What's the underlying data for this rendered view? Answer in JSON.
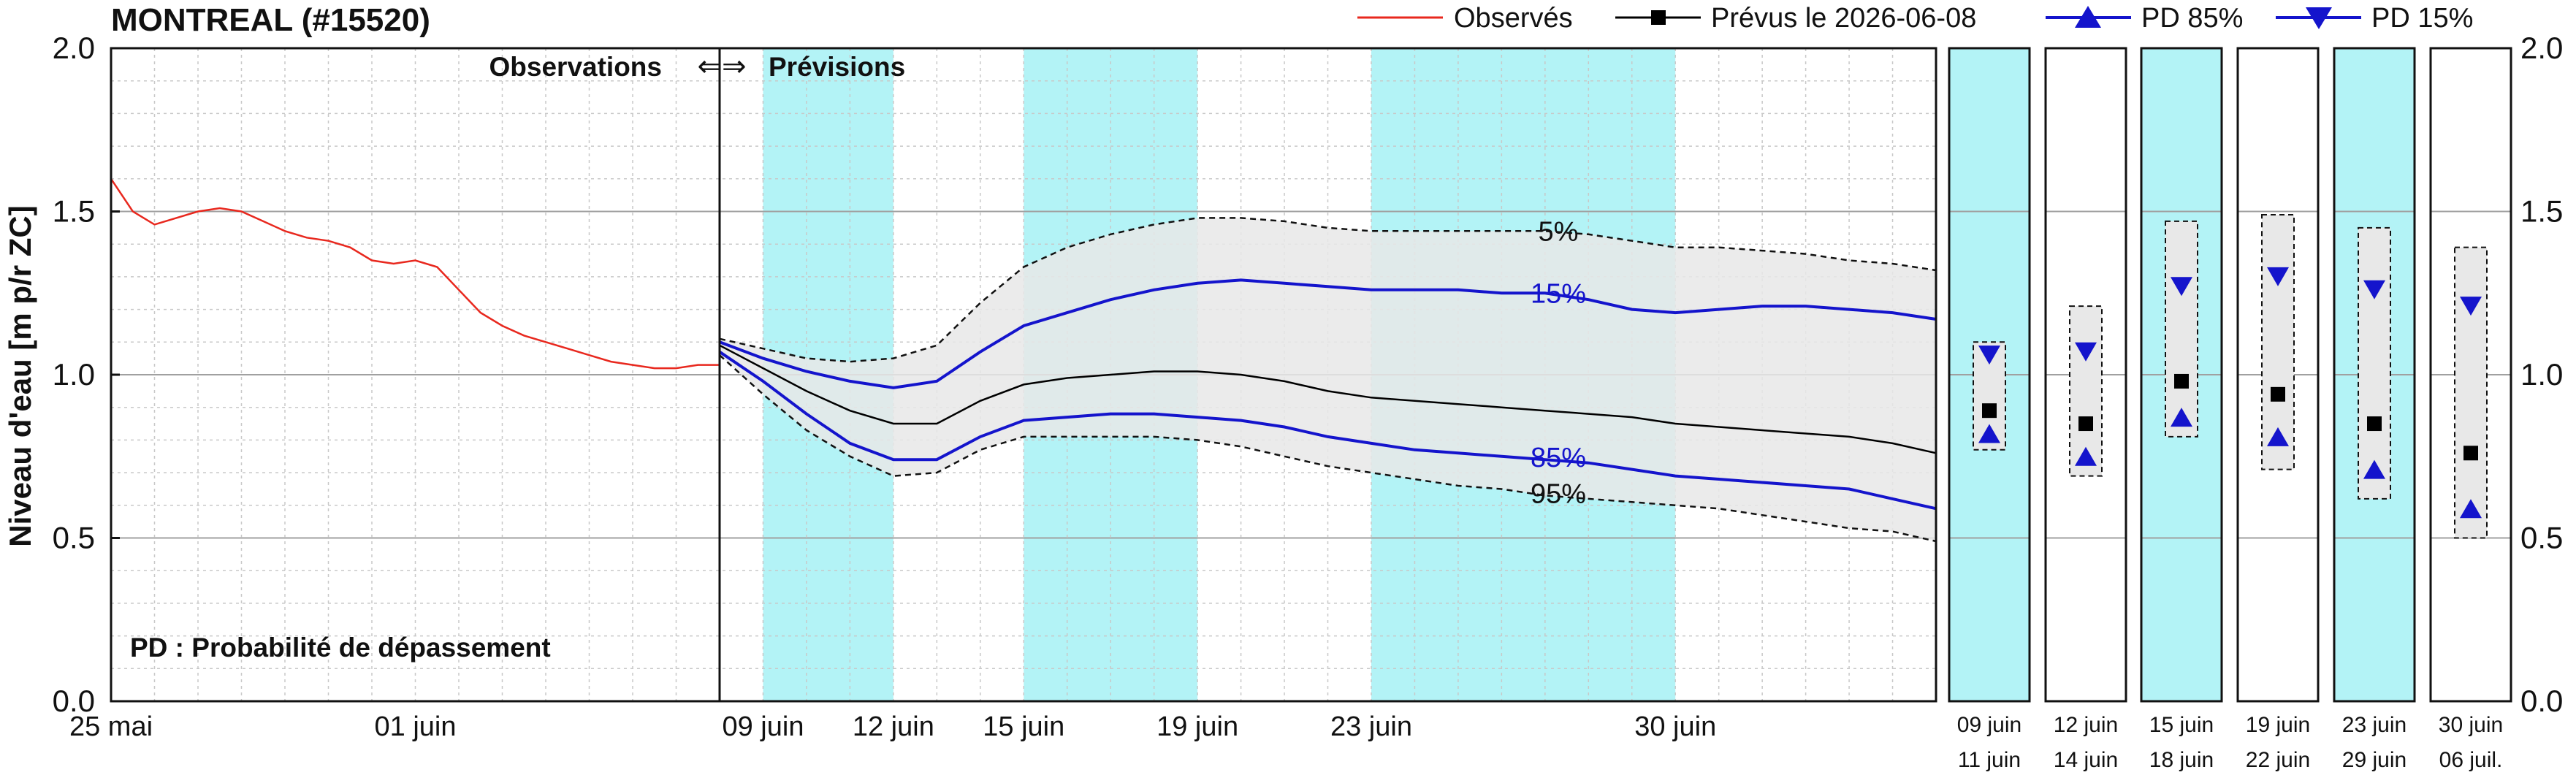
{
  "title": "MONTREAL (#15520)",
  "legend": {
    "observed": "Observés",
    "forecast": "Prévus le 2026-06-08",
    "pd85": "PD 85%",
    "pd15": "PD 15%"
  },
  "colors": {
    "observed": "#e8281e",
    "forecast": "#000000",
    "pd": "#1414cc",
    "band": "#e8e8e8",
    "period_shade": "#b3f3f6",
    "gridline": "#a0a0a0",
    "minor_grid": "#c8c8c8"
  },
  "chart_data": {
    "type": "line",
    "title": "MONTREAL (#15520)",
    "ylabel": "Niveau d'eau [m p/r ZC]",
    "ylim": [
      0.0,
      2.0
    ],
    "yticks": [
      "0.0",
      "0.5",
      "1.0",
      "1.5",
      "2.0"
    ],
    "grid": true,
    "legend_position": "top-right",
    "annotations": {
      "observations": "Observations",
      "forecasts": "Prévisions",
      "arrows": "⇐⇒",
      "pd_note": "PD : Probabilité de dépassement",
      "p5": "5%",
      "p15": "15%",
      "p85": "85%",
      "p95": "95%"
    },
    "observed": {
      "x_ticks": [
        "25 mai",
        "01 juin"
      ],
      "x_range_days": [
        "2026-05-25",
        "2026-06-08"
      ],
      "series": {
        "name": "Observés",
        "x": [
          "2026-05-25",
          "2026-05-25T12",
          "2026-05-26",
          "2026-05-26T12",
          "2026-05-27",
          "2026-05-27T12",
          "2026-05-28",
          "2026-05-28T12",
          "2026-05-29",
          "2026-05-29T12",
          "2026-05-30",
          "2026-05-30T12",
          "2026-05-31",
          "2026-05-31T12",
          "2026-06-01",
          "2026-06-01T12",
          "2026-06-02",
          "2026-06-02T12",
          "2026-06-03",
          "2026-06-03T12",
          "2026-06-04",
          "2026-06-04T12",
          "2026-06-05",
          "2026-06-05T12",
          "2026-06-06",
          "2026-06-06T12",
          "2026-06-07",
          "2026-06-07T12",
          "2026-06-08"
        ],
        "y": [
          1.6,
          1.5,
          1.46,
          1.48,
          1.5,
          1.51,
          1.5,
          1.47,
          1.44,
          1.42,
          1.41,
          1.39,
          1.35,
          1.34,
          1.35,
          1.33,
          1.26,
          1.19,
          1.15,
          1.12,
          1.1,
          1.08,
          1.06,
          1.04,
          1.03,
          1.02,
          1.02,
          1.03,
          1.03
        ]
      }
    },
    "forecast": {
      "x_ticks": [
        "09 juin",
        "12 juin",
        "15 juin",
        "19 juin",
        "23 juin",
        "30 juin"
      ],
      "x_range_days": [
        "2026-06-08",
        "2026-07-06"
      ],
      "shaded_periods": [
        [
          "2026-06-09",
          "2026-06-12"
        ],
        [
          "2026-06-15",
          "2026-06-19"
        ],
        [
          "2026-06-23",
          "2026-06-30"
        ]
      ],
      "x": [
        "2026-06-08",
        "2026-06-09",
        "2026-06-10",
        "2026-06-11",
        "2026-06-12",
        "2026-06-13",
        "2026-06-14",
        "2026-06-15",
        "2026-06-16",
        "2026-06-17",
        "2026-06-18",
        "2026-06-19",
        "2026-06-20",
        "2026-06-21",
        "2026-06-22",
        "2026-06-23",
        "2026-06-24",
        "2026-06-25",
        "2026-06-26",
        "2026-06-27",
        "2026-06-28",
        "2026-06-29",
        "2026-06-30",
        "2026-07-01",
        "2026-07-02",
        "2026-07-03",
        "2026-07-04",
        "2026-07-05",
        "2026-07-06"
      ],
      "series": [
        {
          "name": "5%",
          "values": [
            1.11,
            1.08,
            1.05,
            1.04,
            1.05,
            1.09,
            1.22,
            1.33,
            1.39,
            1.43,
            1.46,
            1.48,
            1.48,
            1.47,
            1.45,
            1.44,
            1.44,
            1.44,
            1.44,
            1.44,
            1.43,
            1.41,
            1.39,
            1.39,
            1.38,
            1.37,
            1.35,
            1.34,
            1.32
          ]
        },
        {
          "name": "15%",
          "values": [
            1.1,
            1.05,
            1.01,
            0.98,
            0.96,
            0.98,
            1.07,
            1.15,
            1.19,
            1.23,
            1.26,
            1.28,
            1.29,
            1.28,
            1.27,
            1.26,
            1.26,
            1.26,
            1.25,
            1.25,
            1.23,
            1.2,
            1.19,
            1.2,
            1.21,
            1.21,
            1.2,
            1.19,
            1.17
          ]
        },
        {
          "name": "Prévus le 2026-06-08",
          "values": [
            1.09,
            1.02,
            0.95,
            0.89,
            0.85,
            0.85,
            0.92,
            0.97,
            0.99,
            1.0,
            1.01,
            1.01,
            1.0,
            0.98,
            0.95,
            0.93,
            0.92,
            0.91,
            0.9,
            0.89,
            0.88,
            0.87,
            0.85,
            0.84,
            0.83,
            0.82,
            0.81,
            0.79,
            0.76
          ]
        },
        {
          "name": "85%",
          "values": [
            1.07,
            0.98,
            0.88,
            0.79,
            0.74,
            0.74,
            0.81,
            0.86,
            0.87,
            0.88,
            0.88,
            0.87,
            0.86,
            0.84,
            0.81,
            0.79,
            0.77,
            0.76,
            0.75,
            0.74,
            0.73,
            0.71,
            0.69,
            0.68,
            0.67,
            0.66,
            0.65,
            0.62,
            0.59
          ]
        },
        {
          "name": "95%",
          "values": [
            1.06,
            0.94,
            0.83,
            0.75,
            0.69,
            0.7,
            0.77,
            0.81,
            0.81,
            0.81,
            0.81,
            0.8,
            0.78,
            0.75,
            0.72,
            0.7,
            0.68,
            0.66,
            0.65,
            0.63,
            0.62,
            0.61,
            0.6,
            0.59,
            0.57,
            0.55,
            0.53,
            0.52,
            0.49
          ]
        }
      ]
    },
    "periods": [
      {
        "top_label": "09  juin",
        "bottom_label": "11  juin",
        "shaded": true,
        "range": [
          0.77,
          1.1
        ],
        "pd15": 1.06,
        "forecast": 0.89,
        "pd85": 0.82
      },
      {
        "top_label": "12  juin",
        "bottom_label": "14  juin",
        "shaded": false,
        "range": [
          0.69,
          1.21
        ],
        "pd15": 1.07,
        "forecast": 0.85,
        "pd85": 0.75
      },
      {
        "top_label": "15  juin",
        "bottom_label": "18  juin",
        "shaded": true,
        "range": [
          0.81,
          1.47
        ],
        "pd15": 1.27,
        "forecast": 0.98,
        "pd85": 0.87
      },
      {
        "top_label": "19  juin",
        "bottom_label": "22  juin",
        "shaded": false,
        "range": [
          0.71,
          1.49
        ],
        "pd15": 1.3,
        "forecast": 0.94,
        "pd85": 0.81
      },
      {
        "top_label": "23  juin",
        "bottom_label": "29  juin",
        "shaded": true,
        "range": [
          0.62,
          1.45
        ],
        "pd15": 1.26,
        "forecast": 0.85,
        "pd85": 0.71
      },
      {
        "top_label": "30  juin",
        "bottom_label": "06  juil.",
        "shaded": false,
        "range": [
          0.5,
          1.39
        ],
        "pd15": 1.21,
        "forecast": 0.76,
        "pd85": 0.59
      }
    ]
  }
}
